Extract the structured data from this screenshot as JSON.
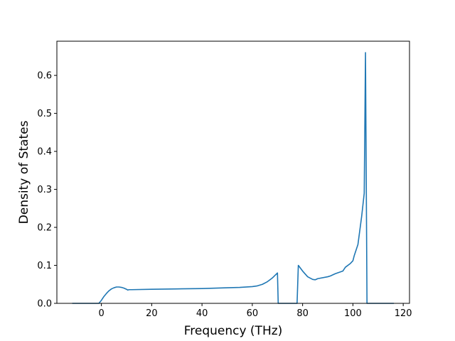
{
  "chart_data": {
    "type": "line",
    "xlabel": "Frequency (THz)",
    "ylabel": "Density of States",
    "xlim": [
      -17.7,
      122.5
    ],
    "ylim": [
      0,
      0.69
    ],
    "xticks": [
      0,
      20,
      40,
      60,
      80,
      100,
      120
    ],
    "yticks": [
      0.0,
      0.1,
      0.2,
      0.3,
      0.4,
      0.5,
      0.6
    ],
    "grid": false,
    "legend": "none",
    "series": [
      {
        "color": "#1f77b4",
        "x": [
          -11.6,
          -1.0,
          0.0,
          1.0,
          2.0,
          3.0,
          4.0,
          5.0,
          6.0,
          7.0,
          8.0,
          9.0,
          10.0,
          10.5,
          11.0,
          12.0,
          20.0,
          30.0,
          40.0,
          50.0,
          55.0,
          60.0,
          62.0,
          64.0,
          66.0,
          68.0,
          70.0,
          70.3,
          71.0,
          77.0,
          77.8,
          78.3,
          80.0,
          82.0,
          84.0,
          85.0,
          86.0,
          90.0,
          91.0,
          93.0,
          96.0,
          97.0,
          99.0,
          100.0,
          100.5,
          102.0,
          103.5,
          104.5,
          105.0,
          105.6,
          106.0,
          116.3
        ],
        "y": [
          0.0,
          0.0,
          0.008,
          0.018,
          0.026,
          0.033,
          0.038,
          0.041,
          0.043,
          0.043,
          0.042,
          0.04,
          0.037,
          0.035,
          0.036,
          0.036,
          0.037,
          0.038,
          0.039,
          0.041,
          0.042,
          0.044,
          0.046,
          0.05,
          0.057,
          0.067,
          0.08,
          0.0,
          0.0,
          0.0,
          0.0,
          0.1,
          0.085,
          0.07,
          0.063,
          0.062,
          0.065,
          0.07,
          0.072,
          0.078,
          0.085,
          0.095,
          0.105,
          0.112,
          0.125,
          0.155,
          0.23,
          0.29,
          0.66,
          0.0,
          0.0,
          0.0
        ]
      }
    ]
  }
}
